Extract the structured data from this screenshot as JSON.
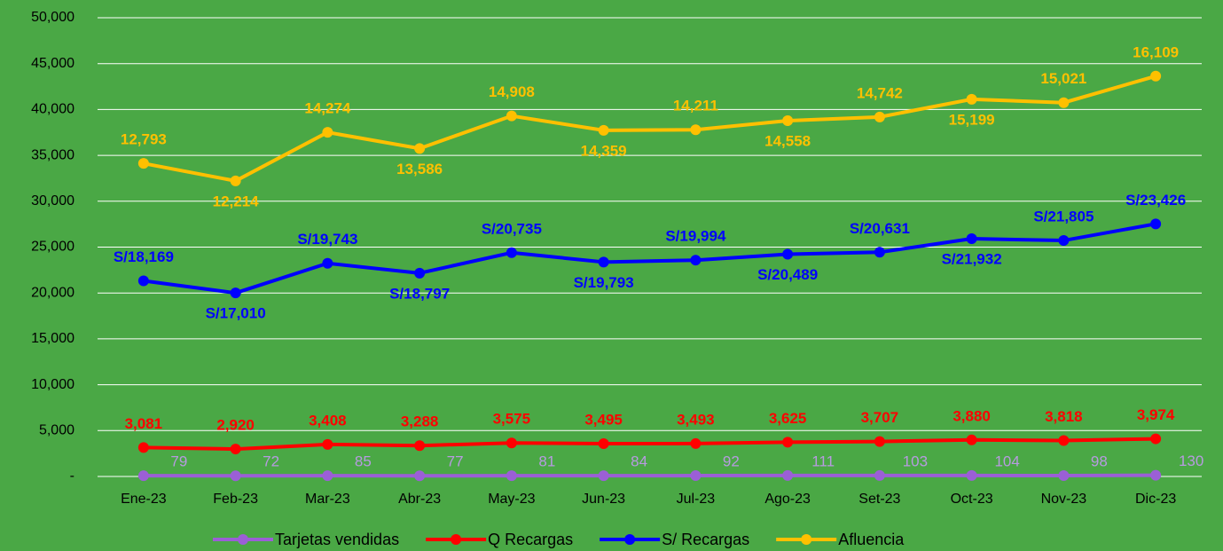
{
  "chart_data": {
    "type": "line",
    "stacked": true,
    "categories": [
      "Ene-23",
      "Feb-23",
      "Mar-23",
      "Abr-23",
      "May-23",
      "Jun-23",
      "Jul-23",
      "Ago-23",
      "Set-23",
      "Oct-23",
      "Nov-23",
      "Dic-23"
    ],
    "ylim": [
      0,
      50000
    ],
    "yticks": [
      {
        "value": 0,
        "label": "-"
      },
      {
        "value": 5000,
        "label": "5,000"
      },
      {
        "value": 10000,
        "label": "10,000"
      },
      {
        "value": 15000,
        "label": "15,000"
      },
      {
        "value": 20000,
        "label": "20,000"
      },
      {
        "value": 25000,
        "label": "25,000"
      },
      {
        "value": 30000,
        "label": "30,000"
      },
      {
        "value": 35000,
        "label": "35,000"
      },
      {
        "value": 40000,
        "label": "40,000"
      },
      {
        "value": 45000,
        "label": "45,000"
      },
      {
        "value": 50000,
        "label": "50,000"
      }
    ],
    "grid": true,
    "legend": "bottom",
    "series": [
      {
        "name": "Tarjetas vendidas",
        "color": "#9b5fd6",
        "label_color": "#b79ae0",
        "values": [
          79,
          72,
          85,
          77,
          81,
          84,
          92,
          111,
          103,
          104,
          98,
          130
        ]
      },
      {
        "name": "Q Recargas",
        "color": "#ff0000",
        "values": [
          3081,
          2920,
          3408,
          3288,
          3575,
          3495,
          3493,
          3625,
          3707,
          3880,
          3818,
          3974
        ],
        "value_labels": [
          "3,081",
          "2,920",
          "3,408",
          "3,288",
          "3,575",
          "3,495",
          "3,493",
          "3,625",
          "3,707",
          "3,880",
          "3,818",
          "3,974"
        ]
      },
      {
        "name": "S/ Recargas",
        "color": "#0000ff",
        "values": [
          18169,
          17010,
          19743,
          18797,
          20735,
          19793,
          19994,
          20489,
          20631,
          21932,
          21805,
          23426
        ],
        "value_labels": [
          "S/18,169",
          "S/17,010",
          "S/19,743",
          "S/18,797",
          "S/20,735",
          "S/19,793",
          "S/19,994",
          "S/20,489",
          "S/20,631",
          "S/21,932",
          "S/21,805",
          "S/23,426"
        ]
      },
      {
        "name": "Afluencia",
        "color": "#ffc000",
        "values": [
          12793,
          12214,
          14274,
          13586,
          14908,
          14359,
          14211,
          14558,
          14742,
          15199,
          15021,
          16109
        ],
        "value_labels": [
          "12,793",
          "12,214",
          "14,274",
          "13,586",
          "14,908",
          "14,359",
          "14,211",
          "14,558",
          "14,742",
          "15,199",
          "15,021",
          "16,109"
        ]
      }
    ]
  }
}
